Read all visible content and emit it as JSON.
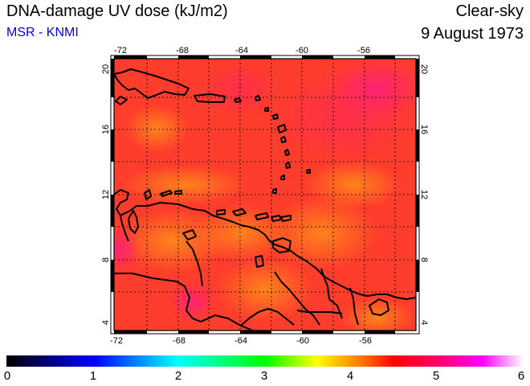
{
  "header": {
    "title": "DNA-damage UV dose (kJ/m2)",
    "source": "MSR - KNMI",
    "condition": "Clear-sky",
    "date": "9 August 1973"
  },
  "map": {
    "lon_ticks": [
      "-72",
      "-68",
      "-64",
      "-60",
      "-56"
    ],
    "lat_ticks": [
      "4",
      "8",
      "12",
      "16",
      "20"
    ],
    "lon_range": [
      -72,
      -52.5
    ],
    "lat_range": [
      3.5,
      20.5
    ],
    "field_color_main": "#ff3b2a",
    "field_color_high": "#ff2a6a",
    "field_color_low": "#ff7a18"
  },
  "colorbar": {
    "labels": [
      "0",
      "1",
      "2",
      "3",
      "4",
      "5",
      "6"
    ],
    "range": [
      0,
      6
    ],
    "stops": [
      "#000000",
      "#0000ff",
      "#00ffff",
      "#00ff00",
      "#ffff00",
      "#ff8000",
      "#ff0000",
      "#ff00ff",
      "#ffffff"
    ]
  }
}
